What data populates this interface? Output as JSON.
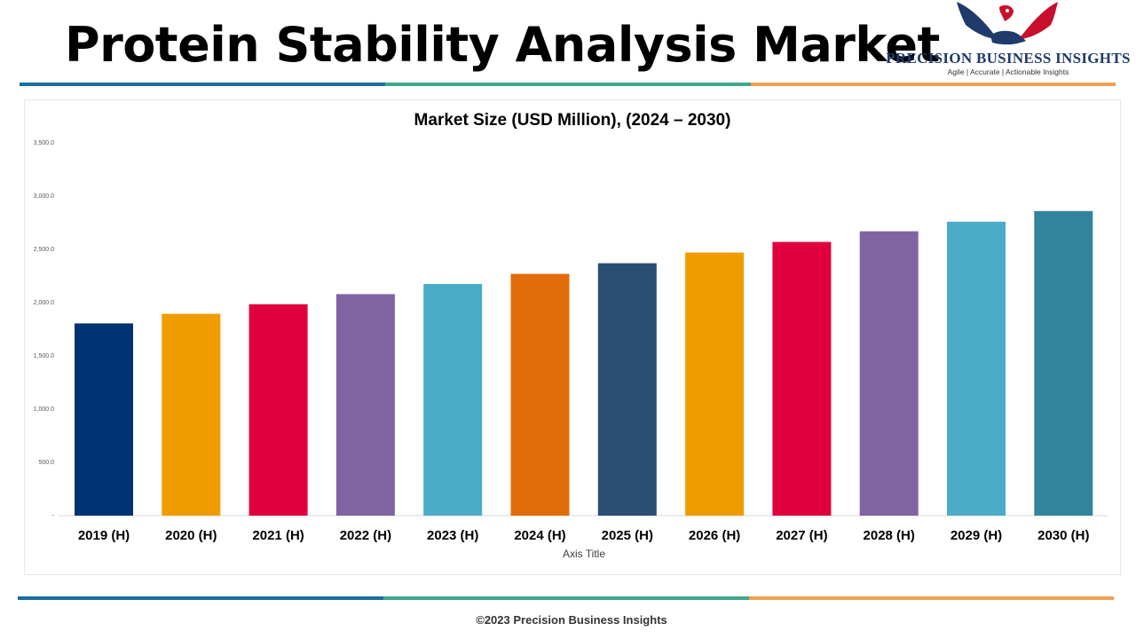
{
  "header": {
    "title": "Protein Stability Analysis Market"
  },
  "logo": {
    "name": "PRECISION BUSINESS INSIGHTS",
    "tagline": "Agile | Accurate | Actionable Insights",
    "icon": "eagle-handshake-icon",
    "colors": {
      "navy": "#1f3a6b",
      "red": "#c8102e"
    }
  },
  "rules": {
    "colors": [
      "#1a6fa0",
      "#3fa88a",
      "#f0a050"
    ]
  },
  "chart_data": {
    "type": "bar",
    "title": "Market Size (USD Million), (2024 – 2030)",
    "xlabel": "Axis Title",
    "ylabel": "",
    "ylim": [
      0,
      3500
    ],
    "yticks": [
      {
        "value": 0,
        "label": "-"
      },
      {
        "value": 500,
        "label": "500.0"
      },
      {
        "value": 1000,
        "label": "1,000.0"
      },
      {
        "value": 1500,
        "label": "1,500.0"
      },
      {
        "value": 2000,
        "label": "2,000.0"
      },
      {
        "value": 2500,
        "label": "2,500.0"
      },
      {
        "value": 3000,
        "label": "3,000.0"
      },
      {
        "value": 3500,
        "label": "3,500.0"
      }
    ],
    "categories": [
      "2019 (H)",
      "2020 (H)",
      "2021 (H)",
      "2022 (H)",
      "2023 (H)",
      "2024 (H)",
      "2025 (H)",
      "2026 (H)",
      "2027 (H)",
      "2028 (H)",
      "2029 (H)",
      "2030 (H)"
    ],
    "values": [
      1805,
      1895,
      1985,
      2080,
      2175,
      2270,
      2370,
      2470,
      2570,
      2670,
      2760,
      2860
    ],
    "colors": [
      "#003373",
      "#f09c00",
      "#e1003e",
      "#8064a2",
      "#4aacc6",
      "#e06c0a",
      "#2c4d74",
      "#f09c00",
      "#e1003e",
      "#8064a2",
      "#4aacc6",
      "#31849b"
    ],
    "grid": false,
    "legend": "none"
  },
  "footer": {
    "text": "©2023 Precision Business Insights"
  }
}
